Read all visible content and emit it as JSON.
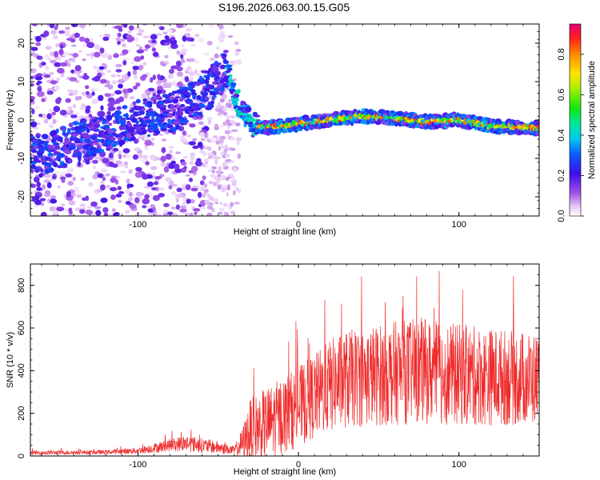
{
  "figure": {
    "title": "S196.2026.063.00.15.G05"
  },
  "chart_data": [
    {
      "type": "heatmap",
      "title": "S196.2026.063.00.15.G05",
      "xlabel": "Height of straight line (km)",
      "ylabel": "Frequency (Hz)",
      "xlim": [
        -167,
        150
      ],
      "ylim": [
        -25,
        25
      ],
      "xticks": [
        -100,
        0,
        100
      ],
      "yticks": [
        -20,
        -10,
        0,
        10,
        20
      ],
      "colorbar": {
        "label": "Normalized spectral amplitude",
        "range": [
          0,
          0.95
        ],
        "ticks": [
          0.0,
          0.2,
          0.4,
          0.6,
          0.8
        ]
      },
      "description_track": {
        "x": [
          -160,
          -120,
          -100,
          -80,
          -60,
          -45,
          -38,
          -30,
          -20,
          0,
          20,
          40,
          60,
          80,
          100,
          120,
          140,
          150
        ],
        "frequency": [
          -9,
          -3,
          0,
          2,
          6,
          13,
          5,
          -1,
          -2,
          -1,
          0,
          1,
          0.5,
          -0.5,
          0,
          -1.5,
          -2,
          -2
        ]
      }
    },
    {
      "type": "line",
      "xlabel": "Height of straight line (km)",
      "ylabel": "SNR (10 * v/v)",
      "xlim": [
        -167,
        150
      ],
      "ylim": [
        0,
        900
      ],
      "xticks": [
        -100,
        0,
        100
      ],
      "yticks": [
        0,
        200,
        400,
        600,
        800
      ],
      "color": "#ee2b2b",
      "envelope": {
        "x": [
          -167,
          -120,
          -100,
          -80,
          -70,
          -50,
          -40,
          -35,
          -30,
          -20,
          -10,
          0,
          10,
          20,
          30,
          50,
          75,
          100,
          125,
          150
        ],
        "mean": [
          15,
          18,
          25,
          50,
          60,
          40,
          25,
          60,
          120,
          150,
          190,
          230,
          280,
          330,
          360,
          380,
          400,
          380,
          370,
          360
        ],
        "amplitude": [
          10,
          10,
          15,
          30,
          40,
          30,
          20,
          70,
          150,
          170,
          180,
          190,
          200,
          220,
          230,
          240,
          250,
          240,
          230,
          220
        ]
      }
    }
  ],
  "colors": {
    "line": "#ee2b2b",
    "frame": "#000000"
  }
}
